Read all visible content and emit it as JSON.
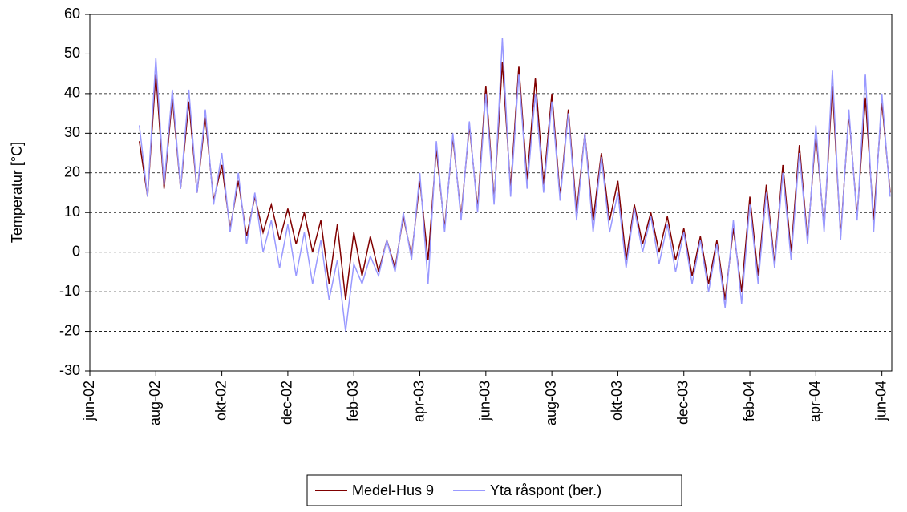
{
  "chart_data": {
    "type": "line",
    "ylabel": "Temperatur [°C]",
    "x": [
      1.5,
      1.75,
      2.0,
      2.25,
      2.5,
      2.75,
      3.0,
      3.25,
      3.5,
      3.75,
      4.0,
      4.25,
      4.5,
      4.75,
      5.0,
      5.25,
      5.5,
      5.75,
      6.0,
      6.25,
      6.5,
      6.75,
      7.0,
      7.25,
      7.5,
      7.75,
      8.0,
      8.25,
      8.5,
      8.75,
      9.0,
      9.25,
      9.5,
      9.75,
      10.0,
      10.25,
      10.5,
      10.75,
      11.0,
      11.25,
      11.5,
      11.75,
      12.0,
      12.25,
      12.5,
      12.75,
      13.0,
      13.25,
      13.5,
      13.75,
      14.0,
      14.25,
      14.5,
      14.75,
      15.0,
      15.25,
      15.5,
      15.75,
      16.0,
      16.25,
      16.5,
      16.75,
      17.0,
      17.25,
      17.5,
      17.75,
      18.0,
      18.25,
      18.5,
      18.75,
      19.0,
      19.25,
      19.5,
      19.75,
      20.0,
      20.25,
      20.5,
      20.75,
      21.0,
      21.25,
      21.5,
      21.75,
      22.0,
      22.25,
      22.5,
      22.75,
      23.0,
      23.25,
      23.5,
      23.75,
      24.0,
      24.25
    ],
    "series": [
      {
        "name": "Medel-Hus 9",
        "color": "#800000",
        "values": [
          28,
          14,
          45,
          16,
          39,
          16,
          38,
          15,
          34,
          13,
          22,
          6,
          18,
          4,
          14,
          5,
          12,
          3,
          11,
          2,
          10,
          0,
          8,
          -8,
          7,
          -12,
          5,
          -6,
          4,
          -5,
          3,
          -4,
          9,
          -1,
          18,
          -2,
          26,
          6,
          29,
          9,
          32,
          11,
          42,
          13,
          48,
          16,
          47,
          18,
          44,
          17,
          40,
          14,
          36,
          10,
          30,
          8,
          25,
          8,
          18,
          -2,
          12,
          2,
          10,
          0,
          9,
          -2,
          6,
          -6,
          4,
          -8,
          3,
          -12,
          6,
          -10,
          14,
          -6,
          17,
          -3,
          22,
          0,
          27,
          3,
          30,
          6,
          42,
          4,
          35,
          9,
          39,
          8,
          38,
          15
        ]
      },
      {
        "name": "Yta råspont (ber.)",
        "color": "#9999ff",
        "values": [
          32,
          14,
          49,
          17,
          41,
          16,
          41,
          15,
          36,
          12,
          25,
          5,
          20,
          2,
          15,
          0,
          8,
          -4,
          7,
          -6,
          5,
          -8,
          3,
          -12,
          -2,
          -20,
          -3,
          -8,
          -1,
          -6,
          3,
          -5,
          10,
          -2,
          20,
          -8,
          28,
          5,
          30,
          8,
          33,
          10,
          40,
          12,
          54,
          14,
          45,
          16,
          40,
          15,
          38,
          13,
          35,
          8,
          30,
          5,
          24,
          5,
          15,
          -4,
          11,
          0,
          9,
          -3,
          7,
          -5,
          5,
          -8,
          3,
          -10,
          2,
          -14,
          8,
          -13,
          12,
          -8,
          15,
          -4,
          20,
          -2,
          25,
          2,
          32,
          5,
          46,
          3,
          36,
          8,
          45,
          5,
          40,
          14
        ]
      }
    ],
    "xlim": [
      0,
      24.3
    ],
    "xticks": [
      {
        "value": 0,
        "label": "jun-02"
      },
      {
        "value": 2,
        "label": "aug-02"
      },
      {
        "value": 4,
        "label": "okt-02"
      },
      {
        "value": 6,
        "label": "dec-02"
      },
      {
        "value": 8,
        "label": "feb-03"
      },
      {
        "value": 10,
        "label": "apr-03"
      },
      {
        "value": 12,
        "label": "jun-03"
      },
      {
        "value": 14,
        "label": "aug-03"
      },
      {
        "value": 16,
        "label": "okt-03"
      },
      {
        "value": 18,
        "label": "dec-03"
      },
      {
        "value": 20,
        "label": "feb-04"
      },
      {
        "value": 22,
        "label": "apr-04"
      },
      {
        "value": 24,
        "label": "jun-04"
      }
    ],
    "ylim": [
      -30,
      60
    ],
    "yticks": [
      -30,
      -20,
      -10,
      0,
      10,
      20,
      30,
      40,
      50,
      60
    ],
    "grid": true,
    "legend": "bottom"
  }
}
